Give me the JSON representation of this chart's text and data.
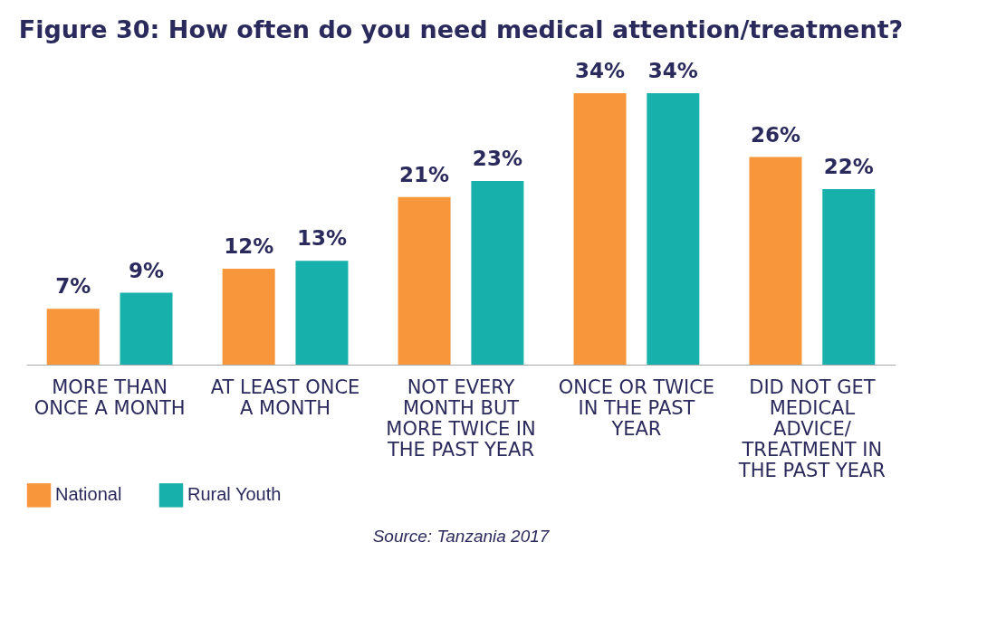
{
  "chart_data": {
    "type": "bar",
    "title": "Figure 30: How often do you need medical attention/treatment?",
    "categories": [
      "MORE THAN ONCE A MONTH",
      "AT LEAST ONCE A MONTH",
      "NOT EVERY MONTH BUT MORE TWICE IN THE PAST YEAR",
      "ONCE OR TWICE IN THE PAST YEAR",
      "DID NOT GET MEDICAL ADVICE/ TREATMENT IN THE PAST YEAR"
    ],
    "series": [
      {
        "name": "National",
        "color": "#f7963a",
        "values": [
          7,
          12,
          21,
          34,
          26
        ],
        "value_labels": [
          "7%",
          "12%",
          "21%",
          "34%",
          "26%"
        ]
      },
      {
        "name": "Rural Youth",
        "color": "#17b0aa",
        "values": [
          9,
          13,
          23,
          34,
          22
        ],
        "value_labels": [
          "9%",
          "13%",
          "23%",
          "34%",
          "22%"
        ]
      }
    ],
    "legend": "bottom left",
    "grid": false,
    "annotations": [
      "Source: Tanzania 2017"
    ]
  }
}
